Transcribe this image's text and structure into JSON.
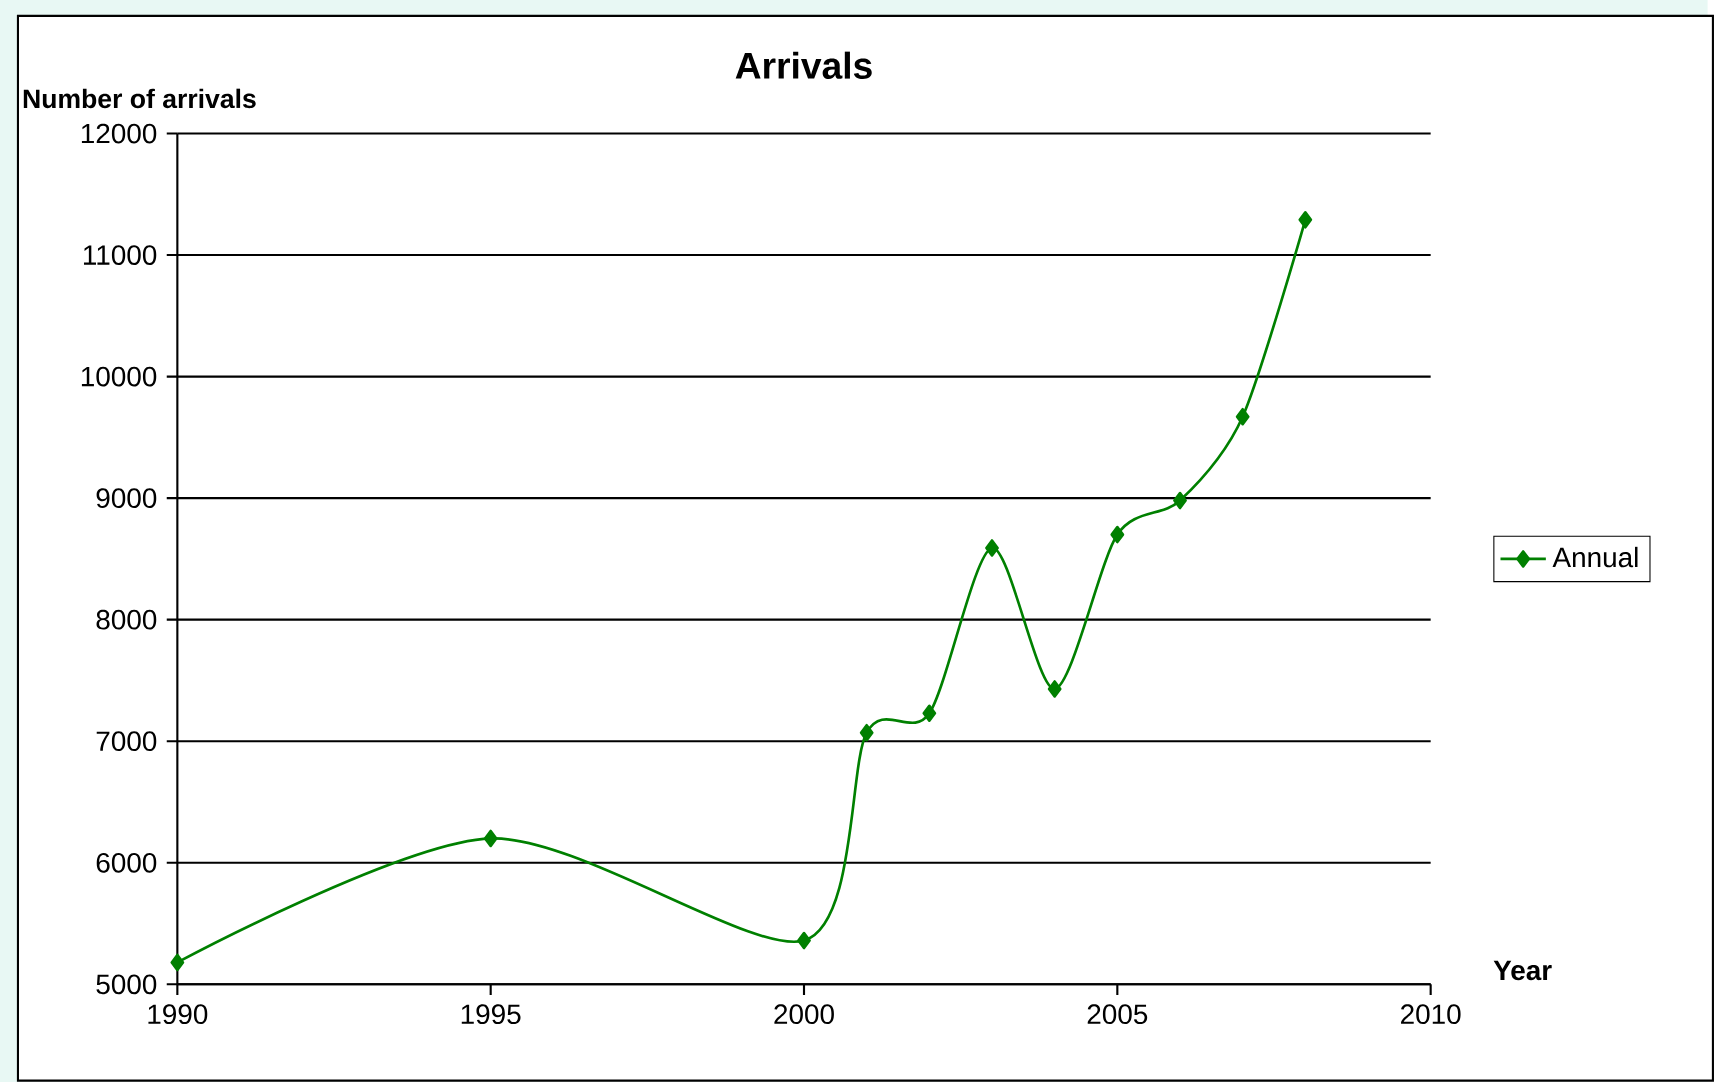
{
  "chart_data": {
    "type": "line",
    "title": "**Arrivals**",
    "ylabel": "Number of arrivals",
    "xlabel": "Year",
    "x": [
      1990,
      1995,
      2000,
      2001,
      2002,
      2003,
      2004,
      2005,
      2006,
      2007,
      2008
    ],
    "series": [
      {
        "name": "Annual",
        "color": "#008000",
        "values": [
          5180,
          6200,
          5360,
          7070,
          7230,
          8590,
          7430,
          8700,
          8980,
          9670,
          11290
        ]
      }
    ],
    "xlim": [
      1990,
      2010
    ],
    "xticks": [
      1990,
      1995,
      2000,
      2005,
      2010
    ],
    "ylim": [
      5000,
      12000
    ],
    "yticks": [
      5000,
      6000,
      7000,
      8000,
      9000,
      10000,
      11000,
      12000
    ],
    "grid": "y",
    "legend": "right",
    "marker": "diamond",
    "line_style": "solid"
  }
}
